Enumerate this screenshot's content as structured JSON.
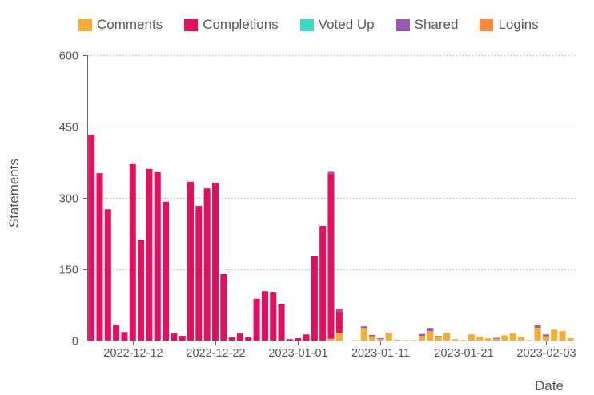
{
  "chart_data": {
    "type": "bar",
    "stacked": true,
    "xlabel": "Date",
    "ylabel": "Statements",
    "ylim": [
      0,
      600
    ],
    "yticks": [
      0,
      150,
      300,
      450,
      600
    ],
    "xticks": [
      "2022-12-12",
      "2022-12-22",
      "2023-01-01",
      "2023-01-11",
      "2023-01-21",
      "2023-02-03"
    ],
    "grid": true,
    "legend": "top",
    "x": [
      "2022-12-07",
      "2022-12-08",
      "2022-12-09",
      "2022-12-10",
      "2022-12-11",
      "2022-12-12",
      "2022-12-13",
      "2022-12-14",
      "2022-12-15",
      "2022-12-16",
      "2022-12-17",
      "2022-12-18",
      "2022-12-19",
      "2022-12-20",
      "2022-12-21",
      "2022-12-22",
      "2022-12-23",
      "2022-12-24",
      "2022-12-25",
      "2022-12-26",
      "2022-12-27",
      "2022-12-28",
      "2022-12-29",
      "2022-12-30",
      "2022-12-31",
      "2023-01-01",
      "2023-01-02",
      "2023-01-03",
      "2023-01-04",
      "2023-01-05",
      "2023-01-06",
      "2023-01-07",
      "2023-01-08",
      "2023-01-09",
      "2023-01-10",
      "2023-01-11",
      "2023-01-12",
      "2023-01-13",
      "2023-01-14",
      "2023-01-15",
      "2023-01-16",
      "2023-01-17",
      "2023-01-18",
      "2023-01-19",
      "2023-01-20",
      "2023-01-21",
      "2023-01-23",
      "2023-01-24",
      "2023-01-25",
      "2023-01-26",
      "2023-01-27",
      "2023-01-30",
      "2023-01-31",
      "2023-02-01",
      "2023-02-02",
      "2023-02-03",
      "2023-02-04",
      "2023-02-05",
      "2023-02-06"
    ],
    "series": [
      {
        "name": "Comments",
        "color": "#f5ad35",
        "values": [
          0,
          0,
          0,
          0,
          0,
          0,
          0,
          0,
          0,
          0,
          0,
          0,
          0,
          0,
          0,
          0,
          0,
          0,
          0,
          0,
          0,
          0,
          0,
          0,
          0,
          0,
          0,
          0,
          0,
          4,
          16,
          0,
          1,
          25,
          9,
          3,
          15,
          2,
          1,
          1,
          10,
          20,
          9,
          16,
          3,
          1,
          13,
          8,
          5,
          4,
          11,
          15,
          8,
          1,
          27,
          9,
          23,
          20,
          5
        ]
      },
      {
        "name": "Completions",
        "color": "#e0115f",
        "values": [
          433,
          352,
          276,
          32,
          18,
          371,
          212,
          361,
          354,
          292,
          15,
          10,
          334,
          283,
          320,
          332,
          140,
          7,
          15,
          7,
          88,
          104,
          101,
          76,
          3,
          5,
          13,
          177,
          241,
          347,
          46,
          0,
          0,
          0,
          0,
          0,
          0,
          0,
          0,
          0,
          0,
          0,
          0,
          0,
          0,
          0,
          0,
          0,
          0,
          0,
          0,
          0,
          0,
          0,
          0,
          0,
          0,
          0,
          0
        ]
      },
      {
        "name": "Voted Up",
        "color": "#3fd9c1",
        "values": [
          0,
          0,
          0,
          0,
          0,
          0,
          0,
          0,
          0,
          0,
          0,
          0,
          0,
          0,
          0,
          0,
          0,
          0,
          0,
          0,
          0,
          0,
          0,
          0,
          0,
          0,
          0,
          0,
          0,
          0,
          0,
          0,
          0,
          0,
          0,
          0,
          0,
          0,
          0,
          0,
          0,
          0,
          0,
          0,
          0,
          0,
          0,
          0,
          0,
          0,
          0,
          0,
          0,
          0,
          0,
          0,
          0,
          0,
          0
        ]
      },
      {
        "name": "Shared",
        "color": "#9b59b6",
        "values": [
          0,
          0,
          0,
          0,
          0,
          0,
          0,
          0,
          0,
          0,
          0,
          0,
          0,
          0,
          0,
          0,
          0,
          0,
          0,
          0,
          0,
          0,
          0,
          0,
          0,
          0,
          0,
          0,
          0,
          4,
          4,
          0,
          0,
          5,
          3,
          2,
          2,
          0,
          0,
          0,
          4,
          5,
          1,
          0,
          0,
          0,
          0,
          0,
          0,
          2,
          0,
          0,
          0,
          0,
          5,
          4,
          0,
          0,
          0
        ]
      },
      {
        "name": "Logins",
        "color": "#ff8843",
        "values": [
          0,
          0,
          0,
          0,
          0,
          0,
          0,
          0,
          0,
          0,
          0,
          0,
          0,
          0,
          0,
          0,
          0,
          0,
          0,
          0,
          0,
          0,
          0,
          0,
          0,
          0,
          0,
          0,
          0,
          0,
          0,
          0,
          0,
          0,
          0,
          0,
          0,
          0,
          0,
          0,
          0,
          0,
          0,
          0,
          0,
          0,
          0,
          0,
          0,
          0,
          0,
          0,
          0,
          0,
          0,
          0,
          0,
          0,
          0
        ]
      }
    ]
  }
}
